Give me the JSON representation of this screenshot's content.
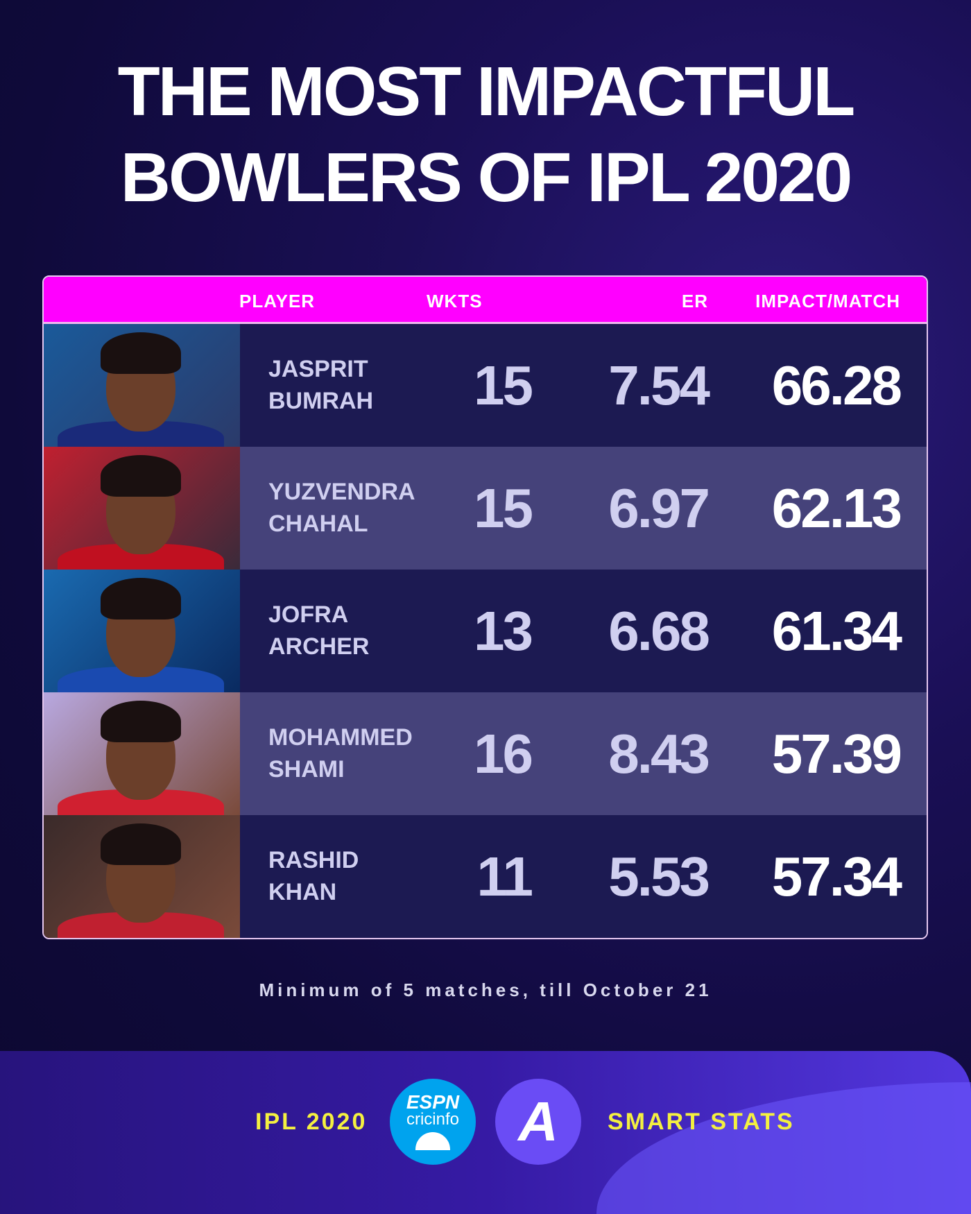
{
  "title": {
    "line1": "THE MOST IMPACTFUL",
    "line2": "BOWLERS OF IPL 2020"
  },
  "table": {
    "headers": {
      "player": "PLAYER",
      "wkts": "WKTS",
      "er": "ER",
      "impact": "IMPACT/MATCH"
    },
    "rows": [
      {
        "first": "JASPRIT",
        "last": "BUMRAH",
        "wkts": "15",
        "er": "7.54",
        "impact": "66.28"
      },
      {
        "first": "YUZVENDRA",
        "last": "CHAHAL",
        "wkts": "15",
        "er": "6.97",
        "impact": "62.13"
      },
      {
        "first": "JOFRA",
        "last": "ARCHER",
        "wkts": "13",
        "er": "6.68",
        "impact": "61.34"
      },
      {
        "first": "MOHAMMED",
        "last": "SHAMI",
        "wkts": "16",
        "er": "8.43",
        "impact": "57.39"
      },
      {
        "first": "RASHID",
        "last": "KHAN",
        "wkts": "11",
        "er": "5.53",
        "impact": "57.34"
      }
    ]
  },
  "note": "Minimum of 5 matches, till October 21",
  "footer": {
    "left": "IPL 2020",
    "right": "SMART STATS",
    "espn": "ESPN",
    "cricinfo": "cricinfo",
    "logo_letter": "A"
  },
  "colors": {
    "header": "#ff00ff",
    "accent_text": "#f4f040",
    "espn_blue": "#00a3ee",
    "smart_purple": "#6a4cf5"
  }
}
